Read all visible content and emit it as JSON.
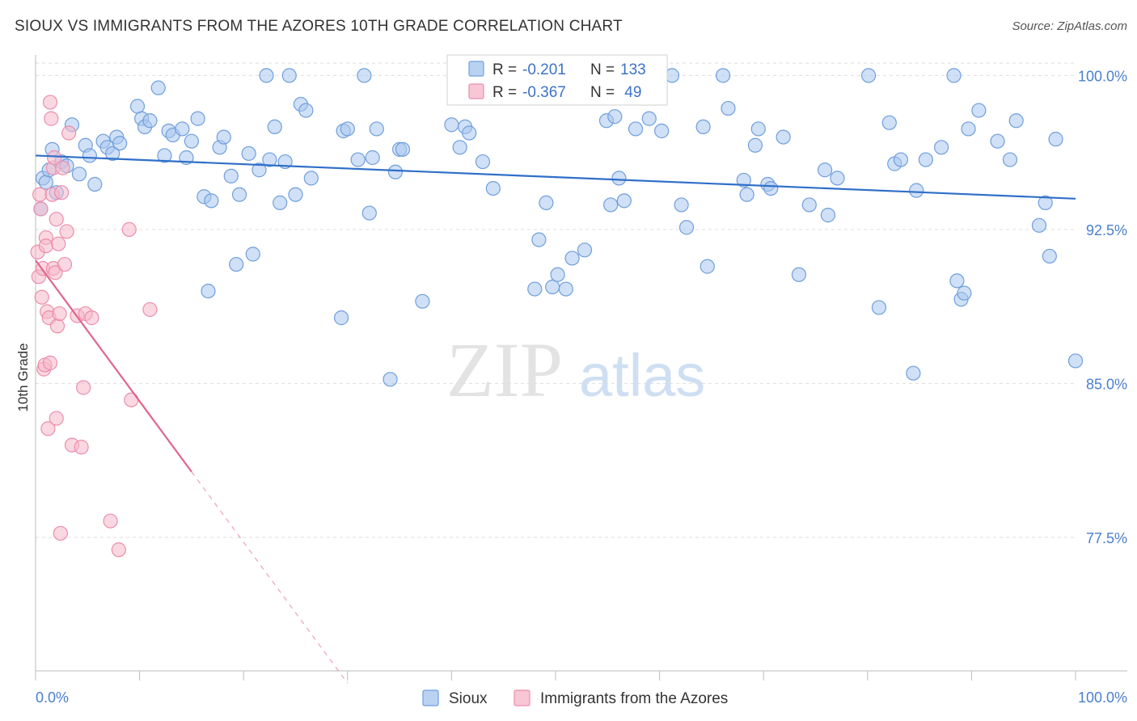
{
  "header": {
    "title": "SIOUX VS IMMIGRANTS FROM THE AZORES 10TH GRADE CORRELATION CHART",
    "source": "Source: ZipAtlas.com"
  },
  "watermark": {
    "zip": "ZIP",
    "atlas": "atlas"
  },
  "colors": {
    "sioux_fill": "#a9c7ef",
    "sioux_stroke": "#6f9fdc",
    "sioux_line": "#2f6fc8",
    "azores_fill": "#f6b8cb",
    "azores_stroke": "#ec8eab",
    "azores_line": "#e0648e",
    "axis_label": "#4a7fd0",
    "grid": "#dddddd"
  },
  "stats_legend": {
    "rows": [
      {
        "r_label": "R = ",
        "r_value": "-0.201",
        "n_label": "N = ",
        "n_value": "133"
      },
      {
        "r_label": "R = ",
        "r_value": "-0.367",
        "n_label": "N = ",
        "n_value": " 49"
      }
    ]
  },
  "bottom_legend": {
    "items": [
      "Sioux",
      "Immigrants from the Azores"
    ]
  },
  "chart_data": {
    "type": "scatter",
    "title": "SIOUX VS IMMIGRANTS FROM THE AZORES 10TH GRADE CORRELATION CHART",
    "xlabel": "",
    "ylabel": "10th Grade",
    "xlim": [
      0,
      100
    ],
    "ylim": [
      71.0,
      101.0
    ],
    "x_tick_labels": [
      "0.0%",
      "100.0%"
    ],
    "y_ticks": [
      77.5,
      85.0,
      92.5,
      100.0
    ],
    "y_tick_labels": [
      "77.5%",
      "85.0%",
      "92.5%",
      "100.0%"
    ],
    "grid": true,
    "series": [
      {
        "name": "Sioux",
        "trend": {
          "x0": 0,
          "y0": 96.1,
          "x1": 100,
          "y1": 94.0,
          "dashed_from": null
        },
        "points": [
          [
            0.5,
            93.5
          ],
          [
            0.7,
            95.0
          ],
          [
            1.0,
            94.8
          ],
          [
            1.3,
            95.4
          ],
          [
            1.6,
            96.4
          ],
          [
            2.0,
            94.3
          ],
          [
            2.5,
            95.8
          ],
          [
            3.0,
            95.6
          ],
          [
            3.5,
            97.6
          ],
          [
            4.2,
            95.2
          ],
          [
            4.8,
            96.6
          ],
          [
            5.2,
            96.1
          ],
          [
            5.7,
            94.7
          ],
          [
            6.5,
            96.8
          ],
          [
            6.9,
            96.5
          ],
          [
            7.4,
            96.2
          ],
          [
            7.8,
            97.0
          ],
          [
            8.1,
            96.7
          ],
          [
            9.8,
            98.5
          ],
          [
            10.2,
            97.9
          ],
          [
            10.5,
            97.5
          ],
          [
            11.0,
            97.8
          ],
          [
            11.8,
            99.4
          ],
          [
            12.4,
            96.1
          ],
          [
            12.8,
            97.3
          ],
          [
            13.2,
            97.1
          ],
          [
            14.1,
            97.4
          ],
          [
            14.5,
            96.0
          ],
          [
            15.0,
            96.8
          ],
          [
            15.6,
            97.9
          ],
          [
            16.2,
            94.1
          ],
          [
            16.6,
            89.5
          ],
          [
            16.9,
            93.9
          ],
          [
            17.7,
            96.5
          ],
          [
            18.1,
            97.0
          ],
          [
            18.8,
            95.1
          ],
          [
            19.3,
            90.8
          ],
          [
            19.6,
            94.2
          ],
          [
            20.5,
            96.2
          ],
          [
            20.9,
            91.3
          ],
          [
            21.5,
            95.4
          ],
          [
            22.2,
            100.0
          ],
          [
            22.5,
            95.9
          ],
          [
            23.0,
            97.5
          ],
          [
            23.5,
            93.8
          ],
          [
            24.0,
            95.8
          ],
          [
            24.4,
            100.0
          ],
          [
            25.0,
            94.2
          ],
          [
            25.5,
            98.6
          ],
          [
            26.0,
            98.3
          ],
          [
            26.5,
            95.0
          ],
          [
            29.4,
            88.2
          ],
          [
            29.6,
            97.3
          ],
          [
            30.0,
            97.4
          ],
          [
            31.0,
            95.9
          ],
          [
            31.6,
            100.0
          ],
          [
            32.1,
            93.3
          ],
          [
            32.4,
            96.0
          ],
          [
            32.8,
            97.4
          ],
          [
            34.1,
            85.2
          ],
          [
            34.6,
            95.3
          ],
          [
            35.0,
            96.4
          ],
          [
            35.3,
            96.4
          ],
          [
            37.2,
            89.0
          ],
          [
            40.0,
            97.6
          ],
          [
            40.8,
            96.5
          ],
          [
            41.3,
            97.5
          ],
          [
            41.7,
            97.2
          ],
          [
            43.0,
            95.8
          ],
          [
            44.0,
            94.5
          ],
          [
            46.6,
            100.0
          ],
          [
            47.7,
            100.0
          ],
          [
            48.0,
            89.6
          ],
          [
            48.4,
            92.0
          ],
          [
            49.1,
            93.8
          ],
          [
            49.7,
            89.7
          ],
          [
            50.2,
            90.3
          ],
          [
            51.0,
            89.6
          ],
          [
            51.6,
            91.1
          ],
          [
            52.8,
            91.5
          ],
          [
            54.9,
            97.8
          ],
          [
            55.3,
            93.7
          ],
          [
            55.7,
            98.0
          ],
          [
            56.1,
            95.0
          ],
          [
            56.6,
            93.9
          ],
          [
            57.7,
            97.4
          ],
          [
            59.0,
            97.9
          ],
          [
            60.2,
            97.3
          ],
          [
            61.2,
            100.0
          ],
          [
            62.1,
            93.7
          ],
          [
            62.6,
            92.6
          ],
          [
            64.2,
            97.5
          ],
          [
            64.6,
            90.7
          ],
          [
            66.1,
            100.0
          ],
          [
            66.6,
            98.4
          ],
          [
            68.1,
            94.9
          ],
          [
            68.4,
            94.2
          ],
          [
            69.2,
            96.6
          ],
          [
            69.5,
            97.4
          ],
          [
            70.4,
            94.7
          ],
          [
            70.7,
            94.5
          ],
          [
            71.9,
            97.0
          ],
          [
            73.4,
            90.3
          ],
          [
            74.4,
            93.7
          ],
          [
            75.9,
            95.4
          ],
          [
            76.2,
            93.2
          ],
          [
            77.1,
            95.0
          ],
          [
            80.1,
            100.0
          ],
          [
            81.1,
            88.7
          ],
          [
            82.1,
            97.7
          ],
          [
            82.6,
            95.7
          ],
          [
            83.2,
            95.9
          ],
          [
            84.4,
            85.5
          ],
          [
            84.7,
            94.4
          ],
          [
            85.6,
            95.9
          ],
          [
            87.1,
            96.5
          ],
          [
            88.3,
            100.0
          ],
          [
            88.6,
            90.0
          ],
          [
            89.0,
            89.1
          ],
          [
            89.3,
            89.4
          ],
          [
            89.7,
            97.4
          ],
          [
            90.7,
            98.3
          ],
          [
            92.5,
            96.8
          ],
          [
            93.7,
            95.9
          ],
          [
            94.3,
            97.8
          ],
          [
            96.5,
            92.7
          ],
          [
            97.1,
            93.8
          ],
          [
            97.5,
            91.2
          ],
          [
            98.1,
            96.9
          ],
          [
            100.0,
            86.1
          ]
        ]
      },
      {
        "name": "Immigrants from the Azores",
        "trend": {
          "x0": 0,
          "y0": 91.0,
          "x1": 30,
          "y1": 70.4,
          "dashed_from": 15
        },
        "points": [
          [
            0.2,
            91.4
          ],
          [
            0.3,
            90.2
          ],
          [
            0.4,
            94.2
          ],
          [
            0.5,
            93.5
          ],
          [
            0.6,
            89.2
          ],
          [
            0.7,
            90.6
          ],
          [
            0.8,
            85.7
          ],
          [
            0.9,
            85.9
          ],
          [
            1.0,
            92.1
          ],
          [
            1.0,
            91.7
          ],
          [
            1.1,
            88.5
          ],
          [
            1.2,
            82.8
          ],
          [
            1.3,
            88.2
          ],
          [
            1.4,
            86.0
          ],
          [
            1.4,
            98.7
          ],
          [
            1.5,
            97.9
          ],
          [
            1.6,
            94.2
          ],
          [
            1.7,
            90.6
          ],
          [
            1.7,
            95.5
          ],
          [
            1.8,
            96.0
          ],
          [
            1.9,
            90.4
          ],
          [
            2.0,
            93.0
          ],
          [
            2.0,
            83.3
          ],
          [
            2.1,
            87.8
          ],
          [
            2.2,
            91.8
          ],
          [
            2.3,
            88.4
          ],
          [
            2.4,
            77.7
          ],
          [
            2.5,
            94.3
          ],
          [
            2.6,
            95.5
          ],
          [
            2.8,
            90.8
          ],
          [
            3.0,
            92.4
          ],
          [
            3.2,
            97.2
          ],
          [
            3.5,
            82.0
          ],
          [
            4.0,
            88.3
          ],
          [
            4.4,
            81.9
          ],
          [
            4.6,
            84.8
          ],
          [
            4.8,
            88.4
          ],
          [
            5.4,
            88.2
          ],
          [
            7.2,
            78.3
          ],
          [
            8.0,
            76.9
          ],
          [
            9.0,
            92.5
          ],
          [
            9.2,
            84.2
          ],
          [
            11.0,
            88.6
          ]
        ]
      }
    ]
  }
}
